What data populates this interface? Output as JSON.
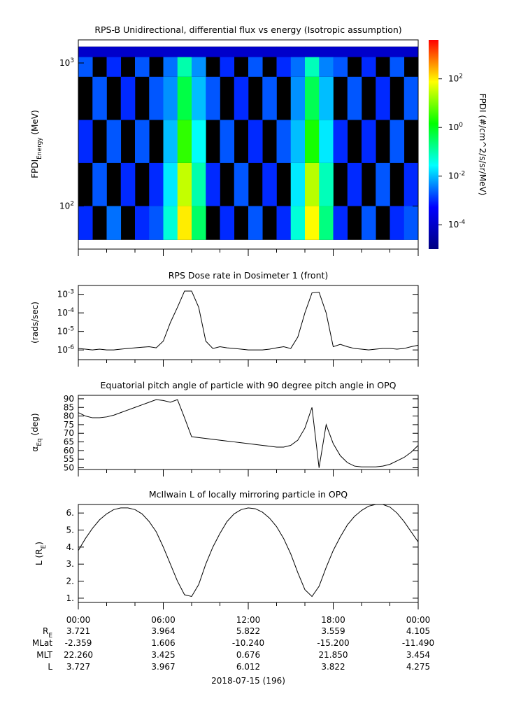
{
  "chart_data": [
    {
      "type": "heatmap",
      "title": "RPS-B  Unidirectional, differential flux vs energy (Isotropic assumption)",
      "ylabel": [
        "FPDI",
        "Energy",
        " (MeV)"
      ],
      "ylog": true,
      "ylim": [
        50,
        1450
      ],
      "yticks": [
        {
          "value": 100,
          "label": "10",
          "exp": "2"
        },
        {
          "value": 1000,
          "label": "10",
          "exp": "3"
        }
      ],
      "xlim": [
        0,
        24
      ],
      "xticks": [
        0,
        6,
        12,
        18,
        24
      ],
      "xminor": [
        2,
        4,
        8,
        10,
        14,
        16,
        20,
        22
      ],
      "xbins": [
        0,
        1,
        2,
        3,
        4,
        5,
        6,
        7,
        8,
        9,
        10,
        11,
        12,
        13,
        14,
        15,
        16,
        17,
        18,
        19,
        20,
        21,
        22,
        23,
        24
      ],
      "ybins": [
        58,
        100,
        200,
        400,
        800,
        1100,
        1300
      ],
      "z": [
        [
          0.001,
          null,
          0.003,
          null,
          0.001,
          0.002,
          0.05,
          100,
          0.3,
          null,
          0.001,
          null,
          0.002,
          null,
          0.001,
          0.05,
          80,
          0.2,
          0.001,
          null,
          0.002,
          null,
          0.001,
          0.002
        ],
        [
          null,
          0.002,
          null,
          0.001,
          null,
          0.001,
          0.02,
          30,
          0.1,
          0.001,
          null,
          0.002,
          null,
          0.001,
          null,
          0.02,
          25,
          0.08,
          null,
          0.001,
          null,
          0.002,
          null,
          0.001
        ],
        [
          0.001,
          null,
          0.002,
          null,
          0.002,
          null,
          0.01,
          3,
          0.03,
          null,
          0.002,
          null,
          0.001,
          null,
          0.002,
          0.01,
          2,
          0.02,
          0.001,
          null,
          0.001,
          null,
          0.002,
          null
        ],
        [
          null,
          0.002,
          null,
          0.001,
          null,
          0.002,
          0.005,
          0.5,
          0.01,
          0.002,
          null,
          0.001,
          null,
          0.002,
          null,
          0.005,
          0.4,
          0.01,
          null,
          0.002,
          null,
          0.001,
          null,
          0.002
        ],
        [
          0.002,
          null,
          0.001,
          null,
          0.002,
          null,
          0.003,
          0.1,
          0.005,
          null,
          0.001,
          null,
          0.002,
          null,
          0.001,
          0.003,
          0.08,
          0.004,
          0.002,
          null,
          0.001,
          null,
          0.002,
          null
        ],
        [
          0.0001,
          0.0001,
          0.0001,
          0.0001,
          0.0001,
          0.0001,
          0.0001,
          0.0001,
          0.0001,
          0.0001,
          0.0001,
          0.0001,
          0.0001,
          0.0001,
          0.0001,
          0.0001,
          0.0001,
          0.0001,
          0.0001,
          0.0001,
          0.0001,
          0.0001,
          0.0001,
          0.0001
        ]
      ],
      "clabel": "FPDI (#/cm^2/s/sr/MeV)",
      "clog": true,
      "clim": [
        1e-05,
        4000
      ],
      "colorscale": [
        "#000080",
        "#0000ff",
        "#00ffff",
        "#00ff00",
        "#ffff00",
        "#ff0000"
      ],
      "cticks": [
        {
          "value": 0.0001,
          "label": "10",
          "exp": "-4"
        },
        {
          "value": 0.01,
          "label": "10",
          "exp": "-2"
        },
        {
          "value": 1,
          "label": "10",
          "exp": "0"
        },
        {
          "value": 100,
          "label": "10",
          "exp": "2"
        }
      ]
    },
    {
      "type": "line",
      "title": "RPS  Dose rate in Dosimeter 1 (front)",
      "ylabel": [
        "(rads/sec)"
      ],
      "ylog": true,
      "ylim": [
        3e-07,
        0.003
      ],
      "yticks": [
        {
          "value": 1e-06,
          "label": "10",
          "exp": "-6"
        },
        {
          "value": 1e-05,
          "label": "10",
          "exp": "-5"
        },
        {
          "value": 0.0001,
          "label": "10",
          "exp": "-4"
        },
        {
          "value": 0.001,
          "label": "10",
          "exp": "-3"
        }
      ],
      "xlim": [
        0,
        24
      ],
      "xticks": [
        0,
        6,
        12,
        18,
        24
      ],
      "xminor": [
        2,
        4,
        8,
        10,
        14,
        16,
        20,
        22
      ],
      "color": "#000000",
      "x": [
        0,
        0.5,
        1,
        1.5,
        2,
        2.5,
        3,
        3.5,
        4,
        4.5,
        5,
        5.5,
        6,
        6.5,
        7,
        7.5,
        8,
        8.5,
        9,
        9.5,
        10,
        10.5,
        11,
        11.5,
        12,
        12.5,
        13,
        13.5,
        14,
        14.5,
        15,
        15.5,
        16,
        16.5,
        17,
        17.5,
        18,
        18.5,
        19,
        19.5,
        20,
        20.5,
        21,
        21.5,
        22,
        22.5,
        23,
        23.5,
        24
      ],
      "values": [
        1.2e-06,
        1.1e-06,
        1e-06,
        1.1e-06,
        1e-06,
        1e-06,
        1.1e-06,
        1.2e-06,
        1.3e-06,
        1.4e-06,
        1.5e-06,
        1.3e-06,
        3e-06,
        3e-05,
        0.0002,
        0.0015,
        0.0015,
        0.0002,
        3e-06,
        1.2e-06,
        1.5e-06,
        1.3e-06,
        1.2e-06,
        1.1e-06,
        1e-06,
        1e-06,
        1e-06,
        1.1e-06,
        1.3e-06,
        1.5e-06,
        1.2e-06,
        5e-06,
        0.0001,
        0.0012,
        0.0013,
        0.0001,
        1.5e-06,
        2e-06,
        1.5e-06,
        1.2e-06,
        1.1e-06,
        1e-06,
        1.1e-06,
        1.2e-06,
        1.2e-06,
        1.1e-06,
        1.2e-06,
        1.5e-06,
        1.8e-06
      ]
    },
    {
      "type": "line",
      "title": "Equatorial pitch angle of particle with 90 degree pitch angle in OPQ",
      "ylabel": [
        "α",
        "Eq",
        " (deg)"
      ],
      "ylim": [
        49,
        92
      ],
      "yticks": [
        50,
        55,
        60,
        65,
        70,
        75,
        80,
        85,
        90
      ],
      "xlim": [
        0,
        24
      ],
      "xticks": [
        0,
        6,
        12,
        18,
        24
      ],
      "xminor": [
        2,
        4,
        8,
        10,
        14,
        16,
        20,
        22
      ],
      "color": "#000000",
      "x": [
        0,
        0.5,
        1,
        1.5,
        2,
        2.5,
        3,
        3.5,
        4,
        4.5,
        5,
        5.5,
        6,
        6.5,
        7,
        7.5,
        8,
        8.5,
        9,
        9.5,
        10,
        10.5,
        11,
        11.5,
        12,
        12.5,
        13,
        13.5,
        14,
        14.5,
        15,
        15.5,
        16,
        16.5,
        17,
        17.5,
        18,
        18.5,
        19,
        19.5,
        20,
        20.5,
        21,
        21.5,
        22,
        22.5,
        23,
        23.5,
        24
      ],
      "values": [
        82,
        80,
        79,
        79,
        79.5,
        80.5,
        82,
        83.5,
        85,
        86.5,
        88,
        89.5,
        89,
        88,
        89.5,
        79,
        68,
        67.5,
        67,
        66.5,
        66,
        65.5,
        65,
        64.5,
        64,
        63.5,
        63,
        62.5,
        62,
        62,
        63,
        66,
        73,
        85,
        50,
        75,
        64,
        57,
        53,
        51,
        50.5,
        50.5,
        50.5,
        51,
        52,
        54,
        56,
        59,
        63
      ]
    },
    {
      "type": "line",
      "title": "McIlwain L of locally mirroring particle in OPQ",
      "ylabel": [
        "L (R",
        "E",
        ")"
      ],
      "ylim": [
        0.75,
        6.5
      ],
      "yticks": [
        {
          "value": 1,
          "label": "1."
        },
        {
          "value": 2,
          "label": "2."
        },
        {
          "value": 3,
          "label": "3."
        },
        {
          "value": 4,
          "label": "4."
        },
        {
          "value": 5,
          "label": "5."
        },
        {
          "value": 6,
          "label": "6."
        }
      ],
      "xlim": [
        0,
        24
      ],
      "xminor": [
        2,
        4,
        8,
        10,
        14,
        16,
        20,
        22
      ],
      "color": "#000000",
      "xticks": [
        {
          "value": 0,
          "label": "00:00"
        },
        {
          "value": 6,
          "label": "06:00"
        },
        {
          "value": 12,
          "label": "12:00"
        },
        {
          "value": 18,
          "label": "18:00"
        },
        {
          "value": 24,
          "label": "00:00"
        }
      ],
      "x": [
        0,
        0.5,
        1,
        1.5,
        2,
        2.5,
        3,
        3.5,
        4,
        4.5,
        5,
        5.5,
        6,
        6.5,
        7,
        7.5,
        8,
        8.5,
        9,
        9.5,
        10,
        10.5,
        11,
        11.5,
        12,
        12.5,
        13,
        13.5,
        14,
        14.5,
        15,
        15.5,
        16,
        16.5,
        17,
        17.5,
        18,
        18.5,
        19,
        19.5,
        20,
        20.5,
        21,
        21.5,
        22,
        22.5,
        23,
        23.5,
        24
      ],
      "values": [
        3.8,
        4.5,
        5.1,
        5.6,
        5.95,
        6.2,
        6.3,
        6.3,
        6.2,
        5.95,
        5.5,
        4.9,
        4.0,
        3.0,
        2.0,
        1.2,
        1.1,
        1.8,
        3.0,
        4.0,
        4.8,
        5.5,
        5.95,
        6.2,
        6.3,
        6.25,
        6.05,
        5.7,
        5.2,
        4.5,
        3.6,
        2.5,
        1.5,
        1.1,
        1.7,
        2.8,
        3.8,
        4.6,
        5.3,
        5.8,
        6.15,
        6.4,
        6.5,
        6.5,
        6.35,
        6.0,
        5.5,
        4.9,
        4.3
      ]
    }
  ],
  "ephemeris": {
    "rows": [
      {
        "label": [
          "R",
          "E"
        ],
        "values": [
          "3.721",
          "3.964",
          "5.822",
          "3.559",
          "4.105"
        ]
      },
      {
        "label": [
          "MLat"
        ],
        "values": [
          "-2.359",
          "1.606",
          "-10.240",
          "-15.200",
          "-11.490"
        ]
      },
      {
        "label": [
          "MLT"
        ],
        "values": [
          "22.260",
          "3.425",
          "0.676",
          "21.850",
          "3.454"
        ]
      },
      {
        "label": [
          "L"
        ],
        "values": [
          "3.727",
          "3.967",
          "6.012",
          "3.822",
          "4.275"
        ]
      }
    ],
    "date": "2018-07-15 (196)"
  }
}
